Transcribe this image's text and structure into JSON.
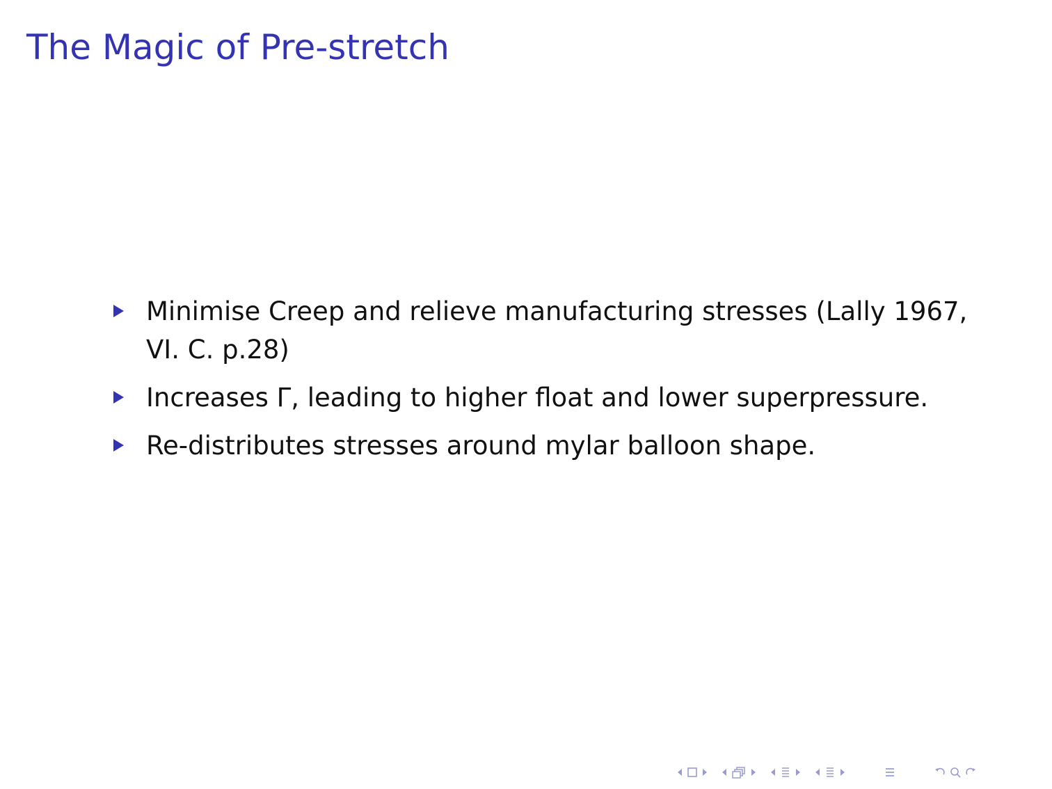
{
  "slide": {
    "title": "The Magic of Pre-stretch",
    "bullets": [
      {
        "text": "Minimise Creep and relieve manufacturing stresses (Lally 1967, VI. C. p.28)"
      },
      {
        "text": "Increases Γ, leading to higher float and lower superpressure."
      },
      {
        "text": "Re-distributes stresses around mylar balloon shape."
      }
    ]
  },
  "navigation": {
    "icons": [
      "arrow-left-icon",
      "frame-icon",
      "arrow-right-icon",
      "arrow-left-icon",
      "subsection-icon",
      "arrow-right-icon",
      "arrow-left-icon",
      "section-icon",
      "arrow-right-icon",
      "arrow-left-icon",
      "section-icon",
      "arrow-right-icon",
      "align-icon",
      "undo-icon",
      "zoom-icon",
      "redo-icon"
    ]
  },
  "colors": {
    "title": "#3333b3",
    "bullet_marker": "#3333b3",
    "nav": "#9b9bd2",
    "text": "#111111"
  }
}
